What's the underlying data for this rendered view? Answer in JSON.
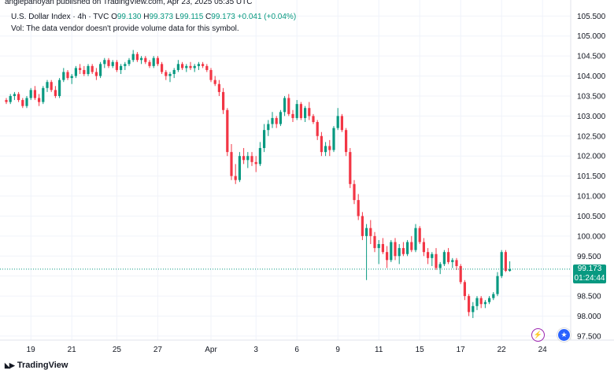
{
  "publisher": "anglepanoyan published on TradingView.com, Apr 23, 2025 05:35 UTC",
  "legend": {
    "symbol": "U.S. Dollar Index · 4h · TVC",
    "open_label": "O",
    "open": "99.130",
    "high_label": "H",
    "high": "99.373",
    "low_label": "L",
    "low": "99.115",
    "close_label": "C",
    "close": "99.173",
    "change": "+0.041 (+0.04%)",
    "volume_note": "Vol: The data vendor doesn't provide volume data for this symbol."
  },
  "price_tag": {
    "price": "99.173",
    "countdown": "01:24:44"
  },
  "logo_text": "TradingView",
  "colors": {
    "up": "#089981",
    "down": "#f23645",
    "grid": "#f0f3fa",
    "last_price_line": "#089981"
  },
  "icons": {
    "event_1": "lightning-icon",
    "event_2": "us-flag-icon"
  },
  "chart_data": {
    "type": "candlestick",
    "title": "U.S. Dollar Index · 4h · TVC",
    "ylim": [
      97.4,
      105.9
    ],
    "y_ticks": [
      "97.500",
      "98.000",
      "98.500",
      "99.000",
      "99.500",
      "100.000",
      "100.500",
      "101.000",
      "101.500",
      "102.000",
      "102.500",
      "103.000",
      "103.500",
      "104.000",
      "104.500",
      "105.000",
      "105.500"
    ],
    "x_ticks": [
      {
        "label": "19",
        "bar": 6
      },
      {
        "label": "21",
        "bar": 16
      },
      {
        "label": "25",
        "bar": 27
      },
      {
        "label": "27",
        "bar": 37
      },
      {
        "label": "Apr",
        "bar": 50
      },
      {
        "label": "3",
        "bar": 61
      },
      {
        "label": "6",
        "bar": 71
      },
      {
        "label": "9",
        "bar": 81
      },
      {
        "label": "11",
        "bar": 91
      },
      {
        "label": "15",
        "bar": 101
      },
      {
        "label": "17",
        "bar": 111
      },
      {
        "label": "22",
        "bar": 121
      },
      {
        "label": "24",
        "bar": 131
      }
    ],
    "last_price": 99.173,
    "candles": [
      [
        103.4,
        103.45,
        103.3,
        103.35
      ],
      [
        103.35,
        103.55,
        103.3,
        103.5
      ],
      [
        103.5,
        103.6,
        103.4,
        103.55
      ],
      [
        103.55,
        103.6,
        103.35,
        103.4
      ],
      [
        103.4,
        103.45,
        103.2,
        103.25
      ],
      [
        103.25,
        103.5,
        103.2,
        103.45
      ],
      [
        103.45,
        103.7,
        103.4,
        103.65
      ],
      [
        103.65,
        103.75,
        103.4,
        103.45
      ],
      [
        103.45,
        103.55,
        103.25,
        103.35
      ],
      [
        103.35,
        103.75,
        103.3,
        103.7
      ],
      [
        103.7,
        103.9,
        103.6,
        103.85
      ],
      [
        103.85,
        103.9,
        103.6,
        103.65
      ],
      [
        103.65,
        103.75,
        103.45,
        103.5
      ],
      [
        103.5,
        103.95,
        103.45,
        103.9
      ],
      [
        103.9,
        104.2,
        103.85,
        104.1
      ],
      [
        104.1,
        104.15,
        103.9,
        103.95
      ],
      [
        103.95,
        104.05,
        103.8,
        104.0
      ],
      [
        104.0,
        104.25,
        103.95,
        104.2
      ],
      [
        104.2,
        104.3,
        104.05,
        104.15
      ],
      [
        104.15,
        104.25,
        104.0,
        104.05
      ],
      [
        104.05,
        104.3,
        104.0,
        104.25
      ],
      [
        104.25,
        104.3,
        104.05,
        104.1
      ],
      [
        104.1,
        104.2,
        103.9,
        104.0
      ],
      [
        104.0,
        104.35,
        103.95,
        104.3
      ],
      [
        104.3,
        104.45,
        104.2,
        104.4
      ],
      [
        104.4,
        104.45,
        104.2,
        104.25
      ],
      [
        104.25,
        104.4,
        104.2,
        104.35
      ],
      [
        104.35,
        104.4,
        104.1,
        104.15
      ],
      [
        104.15,
        104.3,
        104.05,
        104.25
      ],
      [
        104.25,
        104.35,
        104.15,
        104.3
      ],
      [
        104.3,
        104.45,
        104.25,
        104.4
      ],
      [
        104.4,
        104.65,
        104.35,
        104.55
      ],
      [
        104.55,
        104.6,
        104.35,
        104.4
      ],
      [
        104.4,
        104.5,
        104.3,
        104.45
      ],
      [
        104.45,
        104.5,
        104.3,
        104.35
      ],
      [
        104.35,
        104.4,
        104.2,
        104.25
      ],
      [
        104.25,
        104.5,
        104.2,
        104.45
      ],
      [
        104.45,
        104.5,
        104.25,
        104.3
      ],
      [
        104.3,
        104.35,
        104.05,
        104.1
      ],
      [
        104.1,
        104.15,
        103.9,
        104.0
      ],
      [
        104.0,
        104.1,
        103.85,
        104.05
      ],
      [
        104.05,
        104.2,
        103.95,
        104.15
      ],
      [
        104.15,
        104.4,
        104.1,
        104.3
      ],
      [
        104.3,
        104.35,
        104.15,
        104.2
      ],
      [
        104.2,
        104.3,
        104.1,
        104.25
      ],
      [
        104.25,
        104.35,
        104.15,
        104.2
      ],
      [
        104.2,
        104.3,
        104.1,
        104.25
      ],
      [
        104.25,
        104.35,
        104.15,
        104.3
      ],
      [
        104.3,
        104.35,
        104.2,
        104.25
      ],
      [
        104.25,
        104.3,
        104.1,
        104.15
      ],
      [
        104.15,
        104.2,
        103.85,
        103.9
      ],
      [
        103.9,
        104.0,
        103.75,
        103.8
      ],
      [
        103.8,
        103.9,
        103.5,
        103.6
      ],
      [
        103.6,
        103.7,
        103.05,
        103.15
      ],
      [
        103.15,
        103.2,
        102.0,
        102.1
      ],
      [
        102.1,
        102.3,
        101.4,
        101.5
      ],
      [
        101.5,
        101.8,
        101.3,
        101.4
      ],
      [
        101.4,
        102.1,
        101.35,
        102.0
      ],
      [
        102.0,
        102.2,
        101.8,
        101.9
      ],
      [
        101.9,
        102.1,
        101.7,
        102.0
      ],
      [
        102.0,
        102.1,
        101.75,
        101.85
      ],
      [
        101.85,
        102.0,
        101.6,
        101.8
      ],
      [
        101.8,
        102.35,
        101.75,
        102.2
      ],
      [
        102.2,
        102.8,
        102.1,
        102.65
      ],
      [
        102.65,
        102.9,
        102.5,
        102.8
      ],
      [
        102.8,
        103.1,
        102.7,
        102.95
      ],
      [
        102.95,
        103.0,
        102.7,
        102.8
      ],
      [
        102.8,
        103.15,
        102.75,
        103.1
      ],
      [
        103.1,
        103.5,
        103.0,
        103.45
      ],
      [
        103.45,
        103.55,
        103.0,
        103.05
      ],
      [
        103.05,
        103.15,
        102.85,
        102.95
      ],
      [
        102.95,
        103.4,
        102.9,
        103.3
      ],
      [
        103.3,
        103.35,
        102.9,
        102.95
      ],
      [
        102.95,
        103.25,
        102.85,
        103.2
      ],
      [
        103.2,
        103.35,
        102.9,
        103.0
      ],
      [
        103.0,
        103.05,
        102.8,
        102.85
      ],
      [
        102.85,
        102.9,
        102.4,
        102.5
      ],
      [
        102.5,
        102.6,
        102.0,
        102.1
      ],
      [
        102.1,
        102.35,
        102.0,
        102.25
      ],
      [
        102.25,
        102.4,
        102.0,
        102.15
      ],
      [
        102.15,
        102.75,
        102.1,
        102.7
      ],
      [
        102.7,
        103.2,
        102.65,
        103.0
      ],
      [
        103.0,
        103.05,
        102.6,
        102.65
      ],
      [
        102.65,
        102.7,
        102.0,
        102.1
      ],
      [
        102.1,
        102.2,
        101.2,
        101.3
      ],
      [
        101.3,
        101.4,
        100.8,
        100.9
      ],
      [
        100.9,
        101.05,
        100.4,
        100.5
      ],
      [
        100.5,
        100.6,
        99.9,
        100.0
      ],
      [
        100.0,
        100.3,
        98.9,
        100.2
      ],
      [
        100.2,
        100.4,
        99.8,
        100.0
      ],
      [
        100.0,
        100.1,
        99.6,
        99.7
      ],
      [
        99.7,
        99.9,
        99.3,
        99.8
      ],
      [
        99.8,
        99.95,
        99.55,
        99.6
      ],
      [
        99.6,
        99.75,
        99.2,
        99.4
      ],
      [
        99.4,
        99.9,
        99.35,
        99.85
      ],
      [
        99.85,
        99.95,
        99.4,
        99.5
      ],
      [
        99.5,
        99.8,
        99.3,
        99.7
      ],
      [
        99.7,
        99.85,
        99.5,
        99.55
      ],
      [
        99.55,
        99.9,
        99.5,
        99.85
      ],
      [
        99.85,
        100.0,
        99.6,
        99.65
      ],
      [
        99.65,
        100.3,
        99.6,
        100.2
      ],
      [
        100.2,
        100.25,
        99.8,
        99.85
      ],
      [
        99.85,
        99.95,
        99.5,
        99.6
      ],
      [
        99.6,
        99.7,
        99.3,
        99.45
      ],
      [
        99.45,
        99.6,
        99.25,
        99.55
      ],
      [
        99.55,
        99.7,
        99.15,
        99.2
      ],
      [
        99.2,
        99.35,
        99.05,
        99.3
      ],
      [
        99.3,
        99.65,
        99.25,
        99.6
      ],
      [
        99.6,
        99.7,
        99.3,
        99.35
      ],
      [
        99.35,
        99.45,
        99.2,
        99.4
      ],
      [
        99.4,
        99.45,
        99.15,
        99.25
      ],
      [
        99.25,
        99.3,
        98.8,
        98.85
      ],
      [
        98.85,
        98.9,
        98.4,
        98.5
      ],
      [
        98.5,
        98.55,
        98.0,
        98.1
      ],
      [
        98.1,
        98.35,
        97.95,
        98.25
      ],
      [
        98.25,
        98.5,
        98.15,
        98.45
      ],
      [
        98.45,
        98.5,
        98.2,
        98.3
      ],
      [
        98.3,
        98.4,
        98.2,
        98.35
      ],
      [
        98.35,
        98.5,
        98.3,
        98.45
      ],
      [
        98.45,
        98.6,
        98.4,
        98.55
      ],
      [
        98.55,
        99.1,
        98.5,
        99.0
      ],
      [
        99.0,
        99.65,
        98.95,
        99.6
      ],
      [
        99.6,
        99.65,
        99.1,
        99.13
      ],
      [
        99.13,
        99.37,
        99.11,
        99.17
      ]
    ]
  }
}
